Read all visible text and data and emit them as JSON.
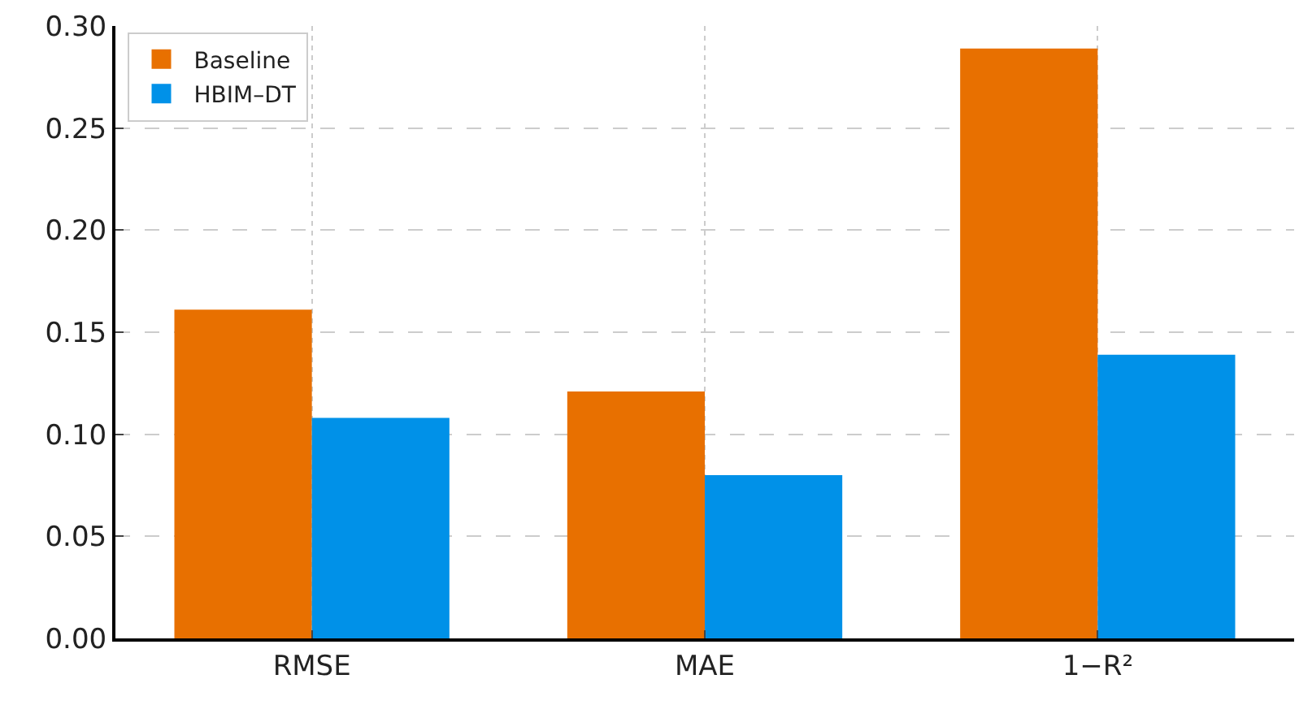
{
  "chart_data": {
    "type": "bar",
    "categories": [
      "RMSE",
      "MAE",
      "1−R²"
    ],
    "series": [
      {
        "name": "Baseline",
        "color": "#e87000",
        "values": [
          0.161,
          0.121,
          0.289
        ]
      },
      {
        "name": "HBIM–DT",
        "color": "#0091e8",
        "values": [
          0.108,
          0.08,
          0.139
        ]
      }
    ],
    "ylim": [
      0,
      0.3
    ],
    "yticks": [
      {
        "value": 0,
        "label": "0.00"
      },
      {
        "value": 0.05,
        "label": "0.05"
      },
      {
        "value": 0.1,
        "label": "0.10"
      },
      {
        "value": 0.15,
        "label": "0.15"
      },
      {
        "value": 0.2,
        "label": "0.20"
      },
      {
        "value": 0.25,
        "label": "0.25"
      },
      {
        "value": 0.3,
        "label": "0.30"
      }
    ],
    "grid": true,
    "legend": "top left"
  }
}
